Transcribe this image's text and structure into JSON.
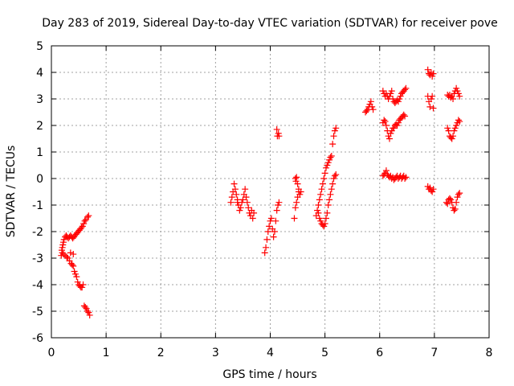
{
  "chart_data": {
    "type": "scatter",
    "title": "Day 283 of 2019, Sidereal Day-to-day VTEC variation (SDTVAR) for receiver pove",
    "xlabel": "GPS time / hours",
    "ylabel": "SDTVAR / TECUs",
    "xlim": [
      0,
      8
    ],
    "ylim": [
      -6,
      5
    ],
    "xticks": [
      "0",
      "1",
      "2",
      "3",
      "4",
      "5",
      "6",
      "7",
      "8"
    ],
    "yticks": [
      "-6",
      "-5",
      "-4",
      "-3",
      "-2",
      "-1",
      "0",
      "1",
      "2",
      "3",
      "4",
      "5"
    ],
    "grid": true,
    "legend": "none",
    "marker": "+",
    "color": "#ff0000",
    "series": [
      {
        "points": [
          [
            0.18,
            -2.9
          ],
          [
            0.19,
            -2.7
          ],
          [
            0.2,
            -2.6
          ],
          [
            0.21,
            -2.5
          ],
          [
            0.22,
            -2.4
          ],
          [
            0.23,
            -2.3
          ],
          [
            0.25,
            -2.2
          ],
          [
            0.27,
            -2.15
          ],
          [
            0.29,
            -2.2
          ],
          [
            0.31,
            -2.25
          ],
          [
            0.33,
            -2.2
          ],
          [
            0.35,
            -2.15
          ],
          [
            0.37,
            -2.2
          ],
          [
            0.39,
            -2.25
          ],
          [
            0.41,
            -2.2
          ],
          [
            0.43,
            -2.15
          ],
          [
            0.45,
            -2.1
          ],
          [
            0.47,
            -2.05
          ],
          [
            0.49,
            -2.0
          ],
          [
            0.51,
            -1.95
          ],
          [
            0.53,
            -1.9
          ],
          [
            0.55,
            -1.85
          ],
          [
            0.57,
            -1.8
          ],
          [
            0.59,
            -1.7
          ],
          [
            0.61,
            -1.6
          ],
          [
            0.63,
            -1.55
          ],
          [
            0.66,
            -1.45
          ],
          [
            0.68,
            -1.4
          ],
          [
            0.2,
            -2.8
          ],
          [
            0.22,
            -2.85
          ],
          [
            0.25,
            -2.9
          ],
          [
            0.28,
            -2.95
          ],
          [
            0.3,
            -3.0
          ],
          [
            0.33,
            -3.1
          ],
          [
            0.36,
            -3.2
          ],
          [
            0.38,
            -3.25
          ],
          [
            0.4,
            -3.3
          ],
          [
            0.42,
            -3.5
          ],
          [
            0.44,
            -3.6
          ],
          [
            0.46,
            -3.7
          ],
          [
            0.48,
            -3.9
          ],
          [
            0.5,
            -4.0
          ],
          [
            0.52,
            -4.05
          ],
          [
            0.54,
            -4.1
          ],
          [
            0.56,
            -4.1
          ],
          [
            0.58,
            -4.0
          ],
          [
            0.6,
            -4.8
          ],
          [
            0.62,
            -4.85
          ],
          [
            0.64,
            -4.9
          ],
          [
            0.66,
            -5.0
          ],
          [
            0.68,
            -5.05
          ],
          [
            0.7,
            -5.15
          ],
          [
            0.35,
            -2.8
          ],
          [
            0.4,
            -2.85
          ],
          [
            3.28,
            -0.9
          ],
          [
            3.3,
            -0.7
          ],
          [
            3.32,
            -0.5
          ],
          [
            3.34,
            -0.2
          ],
          [
            3.36,
            -0.4
          ],
          [
            3.38,
            -0.6
          ],
          [
            3.4,
            -0.8
          ],
          [
            3.42,
            -1.0
          ],
          [
            3.44,
            -1.2
          ],
          [
            3.46,
            -1.1
          ],
          [
            3.48,
            -0.9
          ],
          [
            3.5,
            -0.8
          ],
          [
            3.52,
            -0.6
          ],
          [
            3.54,
            -0.4
          ],
          [
            3.56,
            -0.7
          ],
          [
            3.58,
            -0.9
          ],
          [
            3.6,
            -1.1
          ],
          [
            3.62,
            -1.3
          ],
          [
            3.64,
            -1.4
          ],
          [
            3.66,
            -1.2
          ],
          [
            3.68,
            -1.5
          ],
          [
            3.7,
            -1.3
          ],
          [
            3.4,
            -0.9
          ],
          [
            3.9,
            -2.8
          ],
          [
            3.92,
            -2.6
          ],
          [
            3.94,
            -2.3
          ],
          [
            3.96,
            -2.0
          ],
          [
            3.98,
            -1.8
          ],
          [
            4.0,
            -1.6
          ],
          [
            4.02,
            -1.5
          ],
          [
            4.04,
            -1.9
          ],
          [
            4.06,
            -2.2
          ],
          [
            4.08,
            -2.0
          ],
          [
            4.1,
            -1.6
          ],
          [
            4.12,
            -1.2
          ],
          [
            4.14,
            -1.0
          ],
          [
            4.16,
            -0.9
          ],
          [
            4.13,
            1.6
          ],
          [
            4.15,
            1.7
          ],
          [
            4.16,
            1.6
          ],
          [
            4.12,
            1.85
          ],
          [
            4.44,
            -1.5
          ],
          [
            4.46,
            -1.1
          ],
          [
            4.48,
            -0.9
          ],
          [
            4.5,
            -0.7
          ],
          [
            4.52,
            -0.4
          ],
          [
            4.46,
            0.0
          ],
          [
            4.48,
            0.05
          ],
          [
            4.5,
            -0.2
          ],
          [
            4.52,
            -0.5
          ],
          [
            4.54,
            -0.6
          ],
          [
            4.56,
            -0.5
          ],
          [
            4.47,
            -0.1
          ],
          [
            4.84,
            -1.4
          ],
          [
            4.86,
            -1.2
          ],
          [
            4.88,
            -1.0
          ],
          [
            4.9,
            -0.8
          ],
          [
            4.92,
            -0.6
          ],
          [
            4.94,
            -0.4
          ],
          [
            4.96,
            -0.2
          ],
          [
            4.98,
            0.0
          ],
          [
            5.0,
            0.2
          ],
          [
            5.02,
            0.4
          ],
          [
            5.04,
            0.5
          ],
          [
            5.06,
            0.6
          ],
          [
            5.08,
            0.7
          ],
          [
            5.1,
            0.8
          ],
          [
            5.12,
            0.85
          ],
          [
            4.88,
            -1.3
          ],
          [
            4.9,
            -1.5
          ],
          [
            4.92,
            -1.6
          ],
          [
            4.94,
            -1.7
          ],
          [
            4.96,
            -1.75
          ],
          [
            4.98,
            -1.8
          ],
          [
            5.0,
            -1.7
          ],
          [
            5.02,
            -1.5
          ],
          [
            5.04,
            -1.3
          ],
          [
            5.06,
            -1.0
          ],
          [
            5.08,
            -0.8
          ],
          [
            5.1,
            -0.6
          ],
          [
            5.12,
            -0.4
          ],
          [
            5.14,
            -0.2
          ],
          [
            5.16,
            0.0
          ],
          [
            5.18,
            0.1
          ],
          [
            5.2,
            0.15
          ],
          [
            5.14,
            1.3
          ],
          [
            5.16,
            1.6
          ],
          [
            5.18,
            1.8
          ],
          [
            5.2,
            1.9
          ],
          [
            5.74,
            2.5
          ],
          [
            5.76,
            2.55
          ],
          [
            5.78,
            2.6
          ],
          [
            5.8,
            2.7
          ],
          [
            5.82,
            2.8
          ],
          [
            5.84,
            2.9
          ],
          [
            5.86,
            2.7
          ],
          [
            5.88,
            2.6
          ],
          [
            6.06,
            3.3
          ],
          [
            6.08,
            3.2
          ],
          [
            6.1,
            3.1
          ],
          [
            6.12,
            3.2
          ],
          [
            6.14,
            3.1
          ],
          [
            6.16,
            3.0
          ],
          [
            6.18,
            3.1
          ],
          [
            6.2,
            3.2
          ],
          [
            6.22,
            3.3
          ],
          [
            6.24,
            3.0
          ],
          [
            6.26,
            2.9
          ],
          [
            6.28,
            2.85
          ],
          [
            6.3,
            2.9
          ],
          [
            6.32,
            2.95
          ],
          [
            6.34,
            2.9
          ],
          [
            6.36,
            3.0
          ],
          [
            6.38,
            3.1
          ],
          [
            6.4,
            3.2
          ],
          [
            6.42,
            3.25
          ],
          [
            6.44,
            3.3
          ],
          [
            6.46,
            3.35
          ],
          [
            6.48,
            3.4
          ],
          [
            6.06,
            2.1
          ],
          [
            6.08,
            2.2
          ],
          [
            6.1,
            2.15
          ],
          [
            6.12,
            2.0
          ],
          [
            6.14,
            1.8
          ],
          [
            6.16,
            1.6
          ],
          [
            6.18,
            1.5
          ],
          [
            6.2,
            1.7
          ],
          [
            6.22,
            1.8
          ],
          [
            6.24,
            1.9
          ],
          [
            6.26,
            1.9
          ],
          [
            6.28,
            2.0
          ],
          [
            6.3,
            2.05
          ],
          [
            6.32,
            2.0
          ],
          [
            6.34,
            2.1
          ],
          [
            6.36,
            2.2
          ],
          [
            6.38,
            2.25
          ],
          [
            6.4,
            2.3
          ],
          [
            6.42,
            2.35
          ],
          [
            6.44,
            2.4
          ],
          [
            6.46,
            2.35
          ],
          [
            6.06,
            0.1
          ],
          [
            6.08,
            0.15
          ],
          [
            6.1,
            0.2
          ],
          [
            6.12,
            0.3
          ],
          [
            6.14,
            0.15
          ],
          [
            6.16,
            0.1
          ],
          [
            6.18,
            0.05
          ],
          [
            6.2,
            0.1
          ],
          [
            6.22,
            0.0
          ],
          [
            6.24,
            0.05
          ],
          [
            6.26,
            -0.05
          ],
          [
            6.28,
            0.0
          ],
          [
            6.3,
            0.05
          ],
          [
            6.32,
            0.1
          ],
          [
            6.34,
            0.0
          ],
          [
            6.36,
            0.05
          ],
          [
            6.38,
            0.1
          ],
          [
            6.4,
            0.0
          ],
          [
            6.42,
            0.05
          ],
          [
            6.44,
            0.1
          ],
          [
            6.46,
            0.0
          ],
          [
            6.48,
            0.05
          ],
          [
            6.88,
            4.1
          ],
          [
            6.9,
            3.95
          ],
          [
            6.92,
            3.9
          ],
          [
            6.94,
            4.0
          ],
          [
            6.96,
            3.85
          ],
          [
            6.98,
            3.95
          ],
          [
            6.88,
            3.1
          ],
          [
            6.9,
            2.9
          ],
          [
            6.92,
            2.7
          ],
          [
            6.94,
            3.0
          ],
          [
            6.96,
            3.1
          ],
          [
            6.98,
            2.65
          ],
          [
            6.88,
            -0.3
          ],
          [
            6.9,
            -0.4
          ],
          [
            6.92,
            -0.35
          ],
          [
            6.94,
            -0.45
          ],
          [
            6.96,
            -0.5
          ],
          [
            6.98,
            -0.4
          ],
          [
            7.24,
            3.15
          ],
          [
            7.26,
            3.1
          ],
          [
            7.28,
            3.15
          ],
          [
            7.3,
            3.05
          ],
          [
            7.32,
            3.1
          ],
          [
            7.34,
            3.0
          ],
          [
            7.36,
            3.2
          ],
          [
            7.38,
            3.3
          ],
          [
            7.4,
            3.4
          ],
          [
            7.42,
            3.3
          ],
          [
            7.44,
            3.2
          ],
          [
            7.46,
            3.1
          ],
          [
            7.24,
            1.9
          ],
          [
            7.26,
            1.8
          ],
          [
            7.28,
            1.6
          ],
          [
            7.3,
            1.55
          ],
          [
            7.32,
            1.5
          ],
          [
            7.34,
            1.6
          ],
          [
            7.36,
            1.8
          ],
          [
            7.38,
            1.9
          ],
          [
            7.4,
            2.0
          ],
          [
            7.42,
            2.1
          ],
          [
            7.44,
            2.2
          ],
          [
            7.46,
            2.15
          ],
          [
            7.22,
            -0.9
          ],
          [
            7.24,
            -0.95
          ],
          [
            7.26,
            -0.8
          ],
          [
            7.28,
            -0.75
          ],
          [
            7.3,
            -0.8
          ],
          [
            7.32,
            -0.9
          ],
          [
            7.34,
            -1.1
          ],
          [
            7.36,
            -1.2
          ],
          [
            7.38,
            -1.15
          ],
          [
            7.4,
            -0.9
          ],
          [
            7.42,
            -0.7
          ],
          [
            7.44,
            -0.6
          ],
          [
            7.46,
            -0.55
          ]
        ]
      }
    ]
  }
}
